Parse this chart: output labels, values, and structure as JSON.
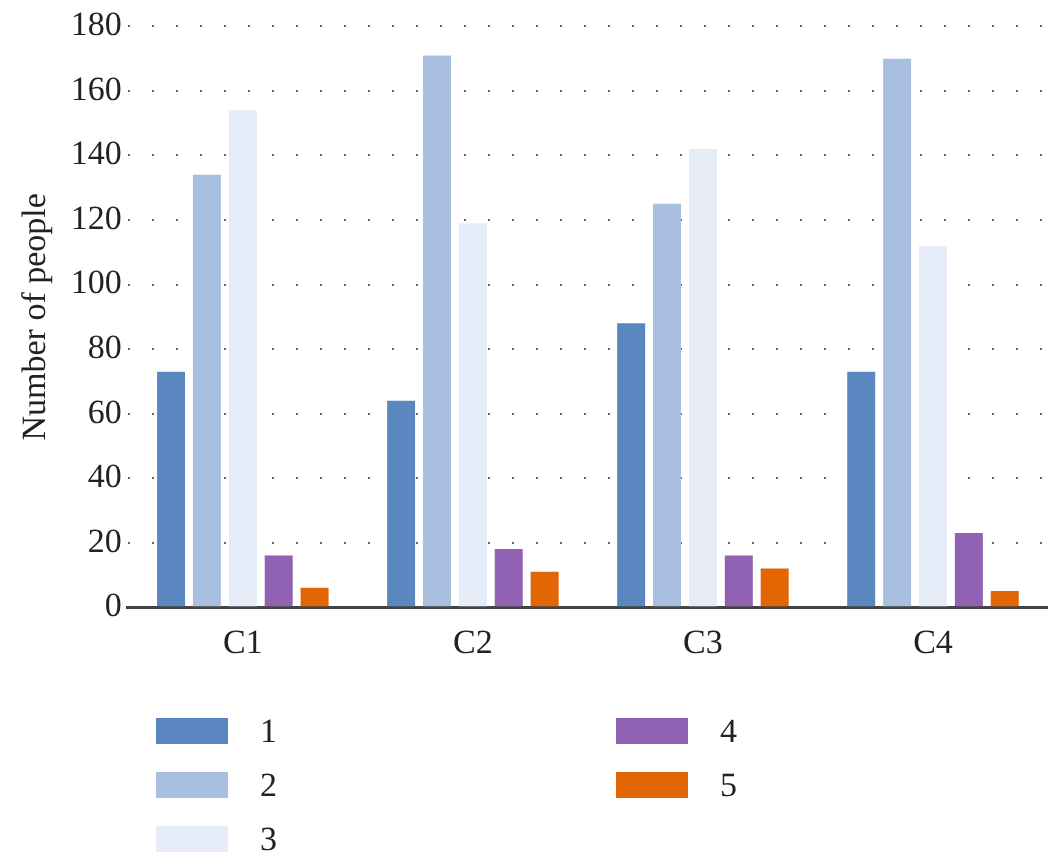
{
  "chart_data": {
    "type": "bar",
    "ylabel": "Number of people",
    "categories": [
      "C1",
      "C2",
      "C3",
      "C4"
    ],
    "series": [
      {
        "name": "1",
        "color": "#5b87c1",
        "values": [
          73,
          64,
          88,
          73
        ]
      },
      {
        "name": "2",
        "color": "#a9bfe0",
        "values": [
          134,
          171,
          125,
          170
        ]
      },
      {
        "name": "3",
        "color": "#e6edf8",
        "values": [
          154,
          119,
          142,
          112
        ]
      },
      {
        "name": "4",
        "color": "#9161b3",
        "values": [
          16,
          18,
          16,
          23
        ]
      },
      {
        "name": "5",
        "color": "#e36604",
        "values": [
          6,
          11,
          12,
          5
        ]
      }
    ],
    "ylim": [
      0,
      180
    ],
    "yticks": [
      0,
      20,
      40,
      60,
      80,
      100,
      120,
      140,
      160,
      180
    ],
    "grid": "y",
    "legend": "bottom"
  }
}
